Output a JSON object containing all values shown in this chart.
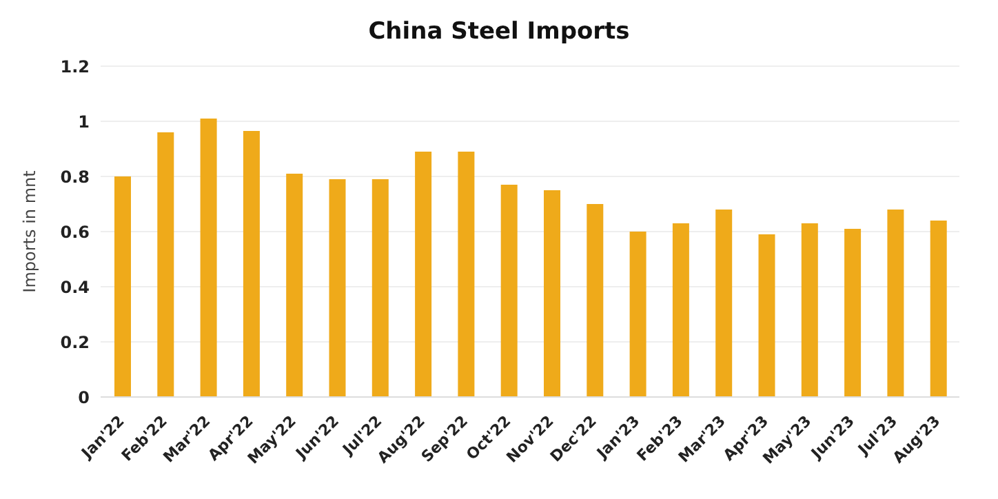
{
  "chart_data": {
    "type": "bar",
    "title": "China Steel Imports",
    "ylabel": "Imports in mnt",
    "categories": [
      "Jan'22",
      "Feb'22",
      "Mar'22",
      "Apr'22",
      "May'22",
      "Jun'22",
      "Jul'22",
      "Aug'22",
      "Sep'22",
      "Oct'22",
      "Nov'22",
      "Dec'22",
      "Jan'23",
      "Feb'23",
      "Mar'23",
      "Apr'23",
      "May'23",
      "Jun'23",
      "Jul'23",
      "Aug'23"
    ],
    "values": [
      0.8,
      0.96,
      1.01,
      0.965,
      0.81,
      0.79,
      0.79,
      0.89,
      0.89,
      0.77,
      0.75,
      0.7,
      0.6,
      0.63,
      0.68,
      0.59,
      0.63,
      0.61,
      0.68,
      0.64
    ],
    "color": "#efaa1a",
    "ylim": [
      0,
      1.2
    ],
    "yticks": [
      0,
      0.2,
      0.4,
      0.6,
      0.8,
      1,
      1.2
    ],
    "grid": "y"
  }
}
